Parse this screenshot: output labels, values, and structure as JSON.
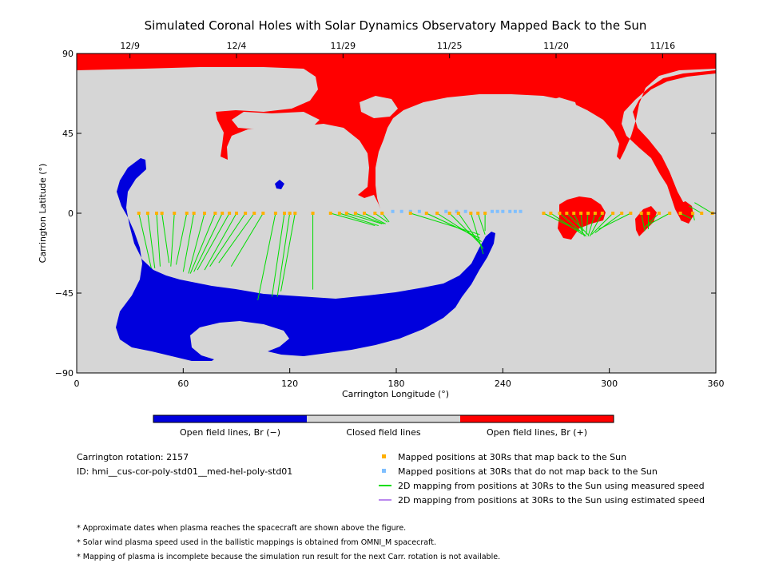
{
  "chart_data": {
    "type": "map",
    "title": "Simulated Coronal Holes with Solar Dynamics Observatory Mapped Back to the Sun",
    "xlabel": "Carrington Longitude (°)",
    "ylabel": "Carrington Latitude (°)",
    "xlim": [
      0,
      360
    ],
    "ylim": [
      -90,
      90
    ],
    "x_ticks": [
      0,
      60,
      120,
      180,
      240,
      300,
      360
    ],
    "y_ticks": [
      90,
      45,
      0,
      -45,
      -90
    ],
    "y_tick_labels": [
      "90",
      "45",
      "0",
      "−45",
      "−90"
    ],
    "date_ticks": [
      {
        "label": "12/9",
        "lon": 30
      },
      {
        "label": "12/4",
        "lon": 90
      },
      {
        "label": "11/29",
        "lon": 150
      },
      {
        "label": "11/25",
        "lon": 210
      },
      {
        "label": "11/20",
        "lon": 270
      },
      {
        "label": "11/16",
        "lon": 330
      }
    ],
    "regions": {
      "negative_open": {
        "color": "#0000dd",
        "label": "Open field lines, Br (−)"
      },
      "closed": {
        "color": "#d6d6d6",
        "label": "Closed field lines"
      },
      "positive_open": {
        "color": "#ff0000",
        "label": "Open field lines, Br (+)"
      }
    },
    "mapped_positions_30Rs": [
      {
        "lon": 35,
        "lat": 0
      },
      {
        "lon": 40,
        "lat": 0
      },
      {
        "lon": 45,
        "lat": 0
      },
      {
        "lon": 48,
        "lat": 0
      },
      {
        "lon": 55,
        "lat": 0
      },
      {
        "lon": 62,
        "lat": 0
      },
      {
        "lon": 66,
        "lat": 0
      },
      {
        "lon": 72,
        "lat": 0
      },
      {
        "lon": 78,
        "lat": 0
      },
      {
        "lon": 82,
        "lat": 0
      },
      {
        "lon": 86,
        "lat": 0
      },
      {
        "lon": 90,
        "lat": 0
      },
      {
        "lon": 95,
        "lat": 0
      },
      {
        "lon": 100,
        "lat": 0
      },
      {
        "lon": 105,
        "lat": 0
      },
      {
        "lon": 112,
        "lat": 0
      },
      {
        "lon": 117,
        "lat": 0
      },
      {
        "lon": 120,
        "lat": 0
      },
      {
        "lon": 123,
        "lat": 0
      },
      {
        "lon": 133,
        "lat": 0
      },
      {
        "lon": 143,
        "lat": 0
      },
      {
        "lon": 148,
        "lat": 0
      },
      {
        "lon": 152,
        "lat": 0
      },
      {
        "lon": 157,
        "lat": 0
      },
      {
        "lon": 162,
        "lat": 0
      },
      {
        "lon": 168,
        "lat": 0
      },
      {
        "lon": 172,
        "lat": 0
      },
      {
        "lon": 188,
        "lat": 0
      },
      {
        "lon": 197,
        "lat": 0
      },
      {
        "lon": 203,
        "lat": 0
      },
      {
        "lon": 210,
        "lat": 0
      },
      {
        "lon": 215,
        "lat": 0
      },
      {
        "lon": 222,
        "lat": 0
      },
      {
        "lon": 226,
        "lat": 0
      },
      {
        "lon": 230,
        "lat": 0
      },
      {
        "lon": 263,
        "lat": 0
      },
      {
        "lon": 267,
        "lat": 0
      },
      {
        "lon": 272,
        "lat": 0
      },
      {
        "lon": 276,
        "lat": 0
      },
      {
        "lon": 280,
        "lat": 0
      },
      {
        "lon": 284,
        "lat": 0
      },
      {
        "lon": 288,
        "lat": 0
      },
      {
        "lon": 292,
        "lat": 0
      },
      {
        "lon": 296,
        "lat": 0
      },
      {
        "lon": 302,
        "lat": 0
      },
      {
        "lon": 307,
        "lat": 0
      },
      {
        "lon": 312,
        "lat": 0
      },
      {
        "lon": 318,
        "lat": 0
      },
      {
        "lon": 322,
        "lat": 0
      },
      {
        "lon": 328,
        "lat": 0
      },
      {
        "lon": 334,
        "lat": 0
      },
      {
        "lon": 340,
        "lat": 0
      },
      {
        "lon": 347,
        "lat": 0
      },
      {
        "lon": 352,
        "lat": 0
      },
      {
        "lon": 358,
        "lat": 0
      }
    ],
    "unmapped_positions_30Rs": [
      {
        "lon": 178,
        "lat": 1
      },
      {
        "lon": 183,
        "lat": 1
      },
      {
        "lon": 188,
        "lat": 1
      },
      {
        "lon": 193,
        "lat": 1
      },
      {
        "lon": 208,
        "lat": 1
      },
      {
        "lon": 214,
        "lat": 1
      },
      {
        "lon": 219,
        "lat": 1
      },
      {
        "lon": 234,
        "lat": 1
      },
      {
        "lon": 237,
        "lat": 1
      },
      {
        "lon": 240,
        "lat": 1
      },
      {
        "lon": 244,
        "lat": 1
      },
      {
        "lon": 247,
        "lat": 1
      },
      {
        "lon": 250,
        "lat": 1
      }
    ],
    "mapping_lines_measured": [
      {
        "from": [
          35,
          0
        ],
        "to": [
          42,
          -31
        ]
      },
      {
        "from": [
          40,
          0
        ],
        "to": [
          44,
          -31
        ]
      },
      {
        "from": [
          45,
          0
        ],
        "to": [
          47,
          -30
        ]
      },
      {
        "from": [
          48,
          0
        ],
        "to": [
          52,
          -28
        ]
      },
      {
        "from": [
          55,
          0
        ],
        "to": [
          53,
          -30
        ]
      },
      {
        "from": [
          62,
          0
        ],
        "to": [
          56,
          -29
        ]
      },
      {
        "from": [
          66,
          0
        ],
        "to": [
          60,
          -33
        ]
      },
      {
        "from": [
          72,
          0
        ],
        "to": [
          63,
          -34
        ]
      },
      {
        "from": [
          78,
          0
        ],
        "to": [
          64,
          -34
        ]
      },
      {
        "from": [
          82,
          0
        ],
        "to": [
          66,
          -33
        ]
      },
      {
        "from": [
          86,
          0
        ],
        "to": [
          68,
          -32
        ]
      },
      {
        "from": [
          90,
          0
        ],
        "to": [
          72,
          -32
        ]
      },
      {
        "from": [
          95,
          0
        ],
        "to": [
          75,
          -30
        ]
      },
      {
        "from": [
          100,
          0
        ],
        "to": [
          80,
          -28
        ]
      },
      {
        "from": [
          105,
          0
        ],
        "to": [
          87,
          -30
        ]
      },
      {
        "from": [
          112,
          0
        ],
        "to": [
          102,
          -49
        ]
      },
      {
        "from": [
          117,
          0
        ],
        "to": [
          110,
          -47
        ]
      },
      {
        "from": [
          120,
          0
        ],
        "to": [
          113,
          -47
        ]
      },
      {
        "from": [
          123,
          0
        ],
        "to": [
          115,
          -44
        ]
      },
      {
        "from": [
          133,
          0
        ],
        "to": [
          133,
          -43
        ]
      },
      {
        "from": [
          143,
          0
        ],
        "to": [
          168,
          -7
        ]
      },
      {
        "from": [
          148,
          0
        ],
        "to": [
          170,
          -7
        ]
      },
      {
        "from": [
          152,
          0
        ],
        "to": [
          172,
          -6
        ]
      },
      {
        "from": [
          157,
          0
        ],
        "to": [
          173,
          -6
        ]
      },
      {
        "from": [
          162,
          0
        ],
        "to": [
          174,
          -6
        ]
      },
      {
        "from": [
          168,
          0
        ],
        "to": [
          175,
          -5
        ]
      },
      {
        "from": [
          172,
          0
        ],
        "to": [
          176,
          -5
        ]
      },
      {
        "from": [
          188,
          0
        ],
        "to": [
          227,
          -12
        ]
      },
      {
        "from": [
          197,
          0
        ],
        "to": [
          227,
          -14
        ]
      },
      {
        "from": [
          203,
          0
        ],
        "to": [
          228,
          -16
        ]
      },
      {
        "from": [
          210,
          0
        ],
        "to": [
          228,
          -18
        ]
      },
      {
        "from": [
          215,
          0
        ],
        "to": [
          229,
          -20
        ]
      },
      {
        "from": [
          222,
          0
        ],
        "to": [
          229,
          -23
        ]
      },
      {
        "from": [
          226,
          0
        ],
        "to": [
          230,
          -12
        ]
      },
      {
        "from": [
          230,
          0
        ],
        "to": [
          230,
          -10
        ]
      },
      {
        "from": [
          263,
          0
        ],
        "to": [
          283,
          -10
        ]
      },
      {
        "from": [
          267,
          0
        ],
        "to": [
          285,
          -12
        ]
      },
      {
        "from": [
          272,
          0
        ],
        "to": [
          287,
          -13
        ]
      },
      {
        "from": [
          276,
          0
        ],
        "to": [
          288,
          -12
        ]
      },
      {
        "from": [
          280,
          0
        ],
        "to": [
          286,
          -13
        ]
      },
      {
        "from": [
          284,
          0
        ],
        "to": [
          285,
          -10
        ]
      },
      {
        "from": [
          288,
          0
        ],
        "to": [
          287,
          -12
        ]
      },
      {
        "from": [
          292,
          0
        ],
        "to": [
          288,
          -13
        ]
      },
      {
        "from": [
          296,
          0
        ],
        "to": [
          289,
          -13
        ]
      },
      {
        "from": [
          302,
          0
        ],
        "to": [
          290,
          -12
        ]
      },
      {
        "from": [
          307,
          0
        ],
        "to": [
          292,
          -11
        ]
      },
      {
        "from": [
          312,
          0
        ],
        "to": [
          294,
          -9
        ]
      },
      {
        "from": [
          318,
          0
        ],
        "to": [
          320,
          -10
        ]
      },
      {
        "from": [
          322,
          0
        ],
        "to": [
          322,
          -9
        ]
      },
      {
        "from": [
          328,
          0
        ],
        "to": [
          320,
          -8
        ]
      },
      {
        "from": [
          334,
          0
        ],
        "to": [
          321,
          -7
        ]
      },
      {
        "from": [
          340,
          0
        ],
        "to": [
          346,
          -3
        ]
      },
      {
        "from": [
          347,
          0
        ],
        "to": [
          348,
          -4
        ]
      },
      {
        "from": [
          352,
          0
        ],
        "to": [
          345,
          4
        ]
      },
      {
        "from": [
          358,
          0
        ],
        "to": [
          348,
          6
        ]
      }
    ],
    "mapping_lines_estimated": []
  },
  "colorbar": {
    "labels": [
      "Open field lines, Br (−)",
      "Closed field lines",
      "Open field lines, Br (+)"
    ],
    "colors": [
      "#0000dd",
      "#d6d6d6",
      "#ff0000"
    ]
  },
  "info": {
    "rotation": "Carrington rotation: 2157",
    "id": "ID: hmi__cus-cor-poly-std01__med-hel-poly-std01"
  },
  "legend": [
    {
      "kind": "square",
      "color": "#ffb000",
      "label": "Mapped positions at 30Rs that map back to the Sun"
    },
    {
      "kind": "square",
      "color": "#7fbfff",
      "label": "Mapped positions at 30Rs that do not map back to the Sun"
    },
    {
      "kind": "line",
      "color": "#00dd00",
      "label": "2D mapping from positions at 30Rs to the Sun using measured speed"
    },
    {
      "kind": "line",
      "color": "#bb88ee",
      "label": "2D mapping from positions at 30Rs to the Sun using estimated speed"
    }
  ],
  "notes": [
    "* Approximate dates when plasma reaches the spacecraft are shown above the figure.",
    "* Solar wind plasma speed used in the ballistic mappings is obtained from OMNI_M spacecraft.",
    "* Mapping of plasma is incomplete because the simulation run result for the next Carr. rotation is not available."
  ]
}
